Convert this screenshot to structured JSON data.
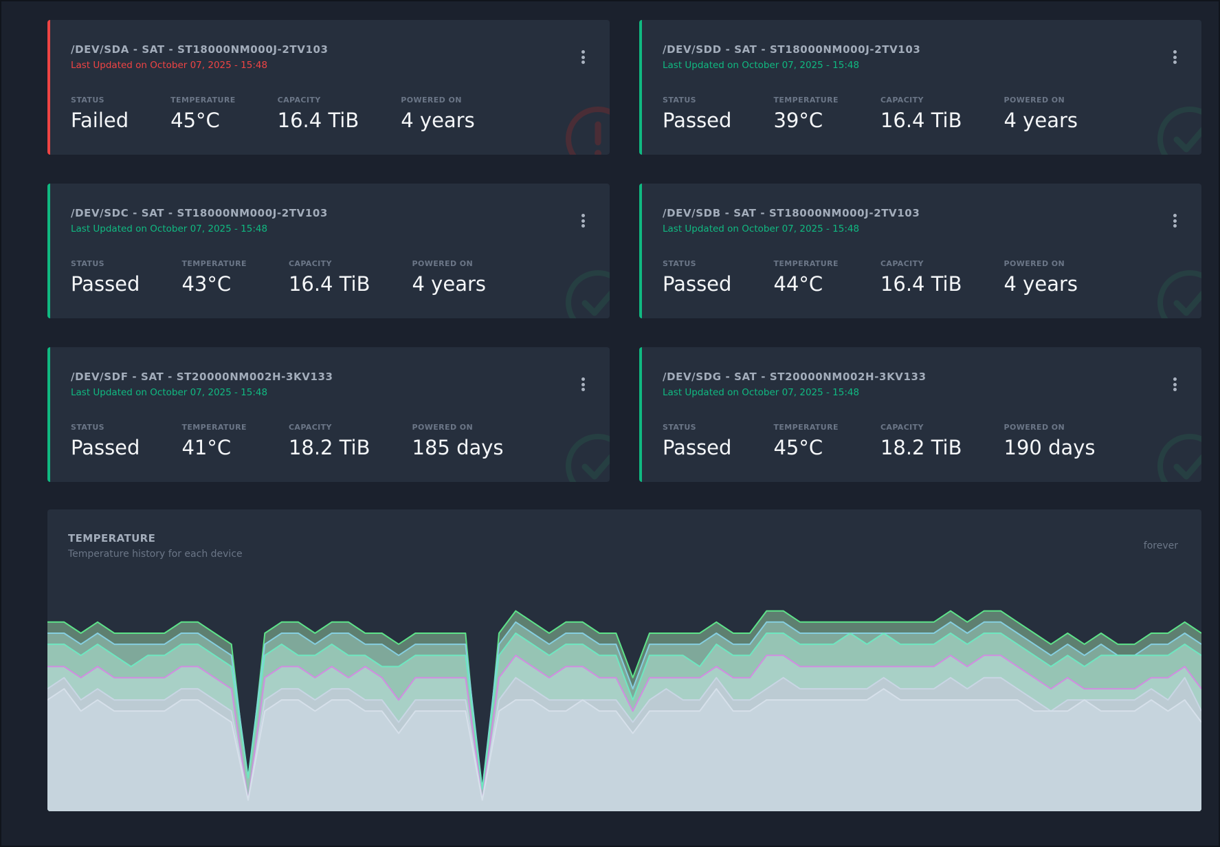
{
  "colors": {
    "passed": "#10b981",
    "failed": "#ef4444",
    "card_bg": "#262f3d",
    "page_bg": "#1b212d"
  },
  "labels": {
    "status": "STATUS",
    "temperature": "TEMPERATURE",
    "capacity": "CAPACITY",
    "powered_on": "POWERED ON"
  },
  "devices": [
    {
      "title": "/DEV/SDA - SAT - ST18000NM000J-2TV103",
      "updated": "Last Updated on October 07, 2025 - 15:48",
      "status": "Failed",
      "temperature": "45°C",
      "capacity": "16.4 TiB",
      "powered_on": "4 years",
      "state": "failed",
      "icon": "exclamation-circle-icon"
    },
    {
      "title": "/DEV/SDD - SAT - ST18000NM000J-2TV103",
      "updated": "Last Updated on October 07, 2025 - 15:48",
      "status": "Passed",
      "temperature": "39°C",
      "capacity": "16.4 TiB",
      "powered_on": "4 years",
      "state": "passed",
      "icon": "check-circle-icon"
    },
    {
      "title": "/DEV/SDC - SAT - ST18000NM000J-2TV103",
      "updated": "Last Updated on October 07, 2025 - 15:48",
      "status": "Passed",
      "temperature": "43°C",
      "capacity": "16.4 TiB",
      "powered_on": "4 years",
      "state": "passed",
      "icon": "check-circle-icon"
    },
    {
      "title": "/DEV/SDB - SAT - ST18000NM000J-2TV103",
      "updated": "Last Updated on October 07, 2025 - 15:48",
      "status": "Passed",
      "temperature": "44°C",
      "capacity": "16.4 TiB",
      "powered_on": "4 years",
      "state": "passed",
      "icon": "check-circle-icon"
    },
    {
      "title": "/DEV/SDF - SAT - ST20000NM002H-3KV133",
      "updated": "Last Updated on October 07, 2025 - 15:48",
      "status": "Passed",
      "temperature": "41°C",
      "capacity": "18.2 TiB",
      "powered_on": "185 days",
      "state": "passed",
      "icon": "check-circle-icon"
    },
    {
      "title": "/DEV/SDG - SAT - ST20000NM002H-3KV133",
      "updated": "Last Updated on October 07, 2025 - 15:48",
      "status": "Passed",
      "temperature": "45°C",
      "capacity": "18.2 TiB",
      "powered_on": "190 days",
      "state": "passed",
      "icon": "check-circle-icon"
    }
  ],
  "temperature_panel": {
    "title": "TEMPERATURE",
    "subtitle": "Temperature history for each device",
    "range": "forever"
  },
  "chart_data": {
    "type": "area",
    "title": "",
    "xlabel": "",
    "ylabel": "",
    "ylim": [
      28,
      49
    ],
    "grid": false,
    "legend": "none",
    "series": [
      {
        "color": "#5ee38a",
        "fill": "#5e7f70",
        "values": [
          45,
          45,
          44,
          45,
          44,
          44,
          44,
          44,
          45,
          45,
          44,
          43,
          30,
          44,
          45,
          45,
          44,
          45,
          45,
          44,
          44,
          43,
          44,
          44,
          44,
          44,
          28,
          44,
          46,
          45,
          44,
          45,
          45,
          44,
          44,
          40,
          44,
          44,
          44,
          44,
          45,
          44,
          44,
          46,
          46,
          45,
          45,
          45,
          45,
          45,
          45,
          45,
          45,
          45,
          46,
          45,
          46,
          46,
          45,
          44,
          43,
          44,
          43,
          44,
          43,
          43,
          44,
          44,
          45,
          44
        ]
      },
      {
        "color": "#86cfe0",
        "fill": "#7fa89a",
        "values": [
          44,
          44,
          43,
          44,
          43,
          43,
          43,
          43,
          44,
          44,
          43,
          42,
          31,
          43,
          44,
          44,
          43,
          44,
          44,
          43,
          43,
          42,
          43,
          43,
          43,
          43,
          30,
          43,
          45,
          44,
          43,
          44,
          44,
          43,
          43,
          39,
          43,
          43,
          43,
          43,
          44,
          43,
          43,
          45,
          45,
          44,
          44,
          44,
          44,
          44,
          44,
          44,
          44,
          44,
          45,
          44,
          45,
          45,
          44,
          43,
          42,
          43,
          42,
          43,
          42,
          42,
          43,
          43,
          44,
          43
        ]
      },
      {
        "color": "#6ee7c0",
        "fill": "#96c4b4",
        "values": [
          43,
          43,
          42,
          43,
          42,
          41,
          42,
          42,
          43,
          43,
          42,
          41,
          31,
          42,
          43,
          42,
          42,
          43,
          42,
          42,
          41,
          41,
          42,
          42,
          42,
          42,
          30,
          42,
          44,
          43,
          42,
          43,
          43,
          42,
          42,
          38,
          42,
          42,
          42,
          41,
          43,
          42,
          42,
          44,
          44,
          43,
          43,
          43,
          44,
          43,
          44,
          43,
          43,
          43,
          44,
          43,
          44,
          44,
          43,
          42,
          41,
          42,
          41,
          42,
          42,
          42,
          42,
          42,
          43,
          42
        ]
      },
      {
        "color": "#d08de0",
        "fill": "#a8d0c6",
        "values": [
          41,
          41,
          40,
          41,
          40,
          40,
          40,
          40,
          41,
          41,
          40,
          39,
          29,
          40,
          41,
          41,
          40,
          41,
          40,
          41,
          40,
          38,
          40,
          40,
          40,
          40,
          29,
          40,
          42,
          41,
          40,
          41,
          41,
          40,
          40,
          37,
          40,
          40,
          40,
          40,
          41,
          40,
          40,
          42,
          42,
          41,
          41,
          41,
          41,
          41,
          41,
          41,
          41,
          41,
          42,
          41,
          42,
          42,
          41,
          40,
          39,
          40,
          39,
          39,
          39,
          39,
          40,
          40,
          41,
          39
        ]
      },
      {
        "color": "#c9d6e4",
        "fill": "#bccbd3",
        "values": [
          39,
          40,
          38,
          39,
          38,
          38,
          38,
          38,
          39,
          39,
          38,
          37,
          29,
          38,
          39,
          39,
          38,
          39,
          39,
          38,
          38,
          36,
          38,
          38,
          38,
          38,
          29,
          38,
          40,
          39,
          38,
          38,
          38,
          38,
          38,
          36,
          38,
          39,
          38,
          38,
          40,
          38,
          38,
          39,
          40,
          39,
          39,
          39,
          39,
          39,
          40,
          39,
          39,
          39,
          40,
          39,
          40,
          40,
          39,
          38,
          37,
          38,
          38,
          38,
          38,
          38,
          39,
          38,
          40,
          37
        ]
      },
      {
        "color": "#d6e0ea",
        "fill": "#c6d4dd",
        "values": [
          38,
          39,
          37,
          38,
          37,
          37,
          37,
          37,
          38,
          38,
          37,
          36,
          29,
          37,
          38,
          38,
          37,
          38,
          38,
          37,
          37,
          35,
          37,
          37,
          37,
          37,
          29,
          37,
          38,
          38,
          37,
          37,
          38,
          37,
          37,
          35,
          37,
          37,
          37,
          37,
          39,
          37,
          37,
          38,
          38,
          38,
          38,
          38,
          38,
          38,
          39,
          38,
          38,
          38,
          38,
          38,
          38,
          38,
          38,
          37,
          37,
          37,
          38,
          37,
          37,
          37,
          38,
          37,
          38,
          36
        ]
      }
    ]
  }
}
